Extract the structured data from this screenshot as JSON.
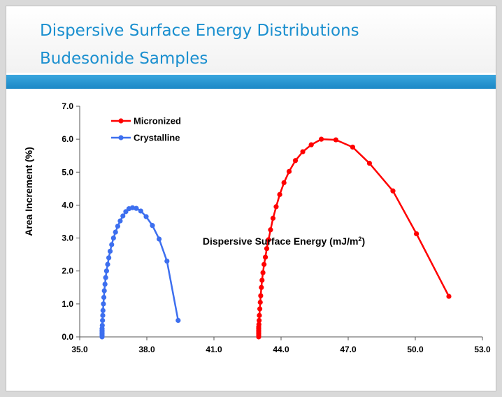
{
  "slide": {
    "title": "Dispersive Surface Energy Distributions",
    "subtitle": "Budesonide Samples"
  },
  "chart_data": {
    "type": "line",
    "xlabel": "Dispersive Surface Energy (mJ/m",
    "xlabel_superscript": "2",
    "xlabel_close": ")",
    "ylabel": "Area Increment (%)",
    "xlim": [
      35.0,
      53.0
    ],
    "ylim": [
      0.0,
      7.0
    ],
    "x_ticks": [
      "35.0",
      "38.0",
      "41.0",
      "44.0",
      "47.0",
      "50.0",
      "53.0"
    ],
    "y_ticks": [
      "0.0",
      "1.0",
      "2.0",
      "3.0",
      "4.0",
      "5.0",
      "6.0",
      "7.0"
    ],
    "grid": false,
    "legend_position": "top-left",
    "series": [
      {
        "name": "Micronized",
        "color": "#ff0000",
        "x": [
          43.0,
          43.0,
          43.0,
          43.0,
          43.0,
          43.0,
          43.0,
          43.01,
          43.02,
          43.03,
          43.05,
          43.07,
          43.09,
          43.12,
          43.15,
          43.19,
          43.24,
          43.3,
          43.36,
          43.44,
          43.53,
          43.64,
          43.78,
          43.94,
          44.13,
          44.36,
          44.64,
          44.97,
          45.35,
          45.8,
          46.45,
          47.2,
          47.95,
          49.0,
          50.05,
          51.5
        ],
        "y": [
          0.0,
          0.05,
          0.1,
          0.15,
          0.2,
          0.25,
          0.3,
          0.38,
          0.5,
          0.65,
          0.85,
          1.05,
          1.25,
          1.5,
          1.72,
          1.95,
          2.2,
          2.42,
          2.68,
          2.95,
          3.25,
          3.6,
          3.95,
          4.32,
          4.68,
          5.02,
          5.35,
          5.62,
          5.83,
          6.0,
          5.98,
          5.76,
          5.27,
          4.43,
          3.13,
          1.23
        ]
      },
      {
        "name": "Crystalline",
        "color": "#3d6fef",
        "x": [
          36.0,
          36.0,
          36.0,
          36.0,
          36.0,
          36.0,
          36.01,
          36.02,
          36.03,
          36.04,
          36.06,
          36.08,
          36.1,
          36.13,
          36.16,
          36.2,
          36.25,
          36.3,
          36.36,
          36.43,
          36.51,
          36.6,
          36.7,
          36.81,
          36.93,
          37.06,
          37.2,
          37.36,
          37.53,
          37.73,
          37.97,
          38.25,
          38.55,
          38.9,
          39.4
        ],
        "y": [
          0.0,
          0.05,
          0.1,
          0.15,
          0.2,
          0.25,
          0.35,
          0.5,
          0.65,
          0.8,
          1.0,
          1.2,
          1.4,
          1.6,
          1.8,
          2.0,
          2.2,
          2.4,
          2.6,
          2.8,
          3.0,
          3.18,
          3.36,
          3.52,
          3.67,
          3.8,
          3.89,
          3.92,
          3.9,
          3.82,
          3.65,
          3.38,
          2.97,
          2.3,
          0.5
        ]
      }
    ]
  }
}
